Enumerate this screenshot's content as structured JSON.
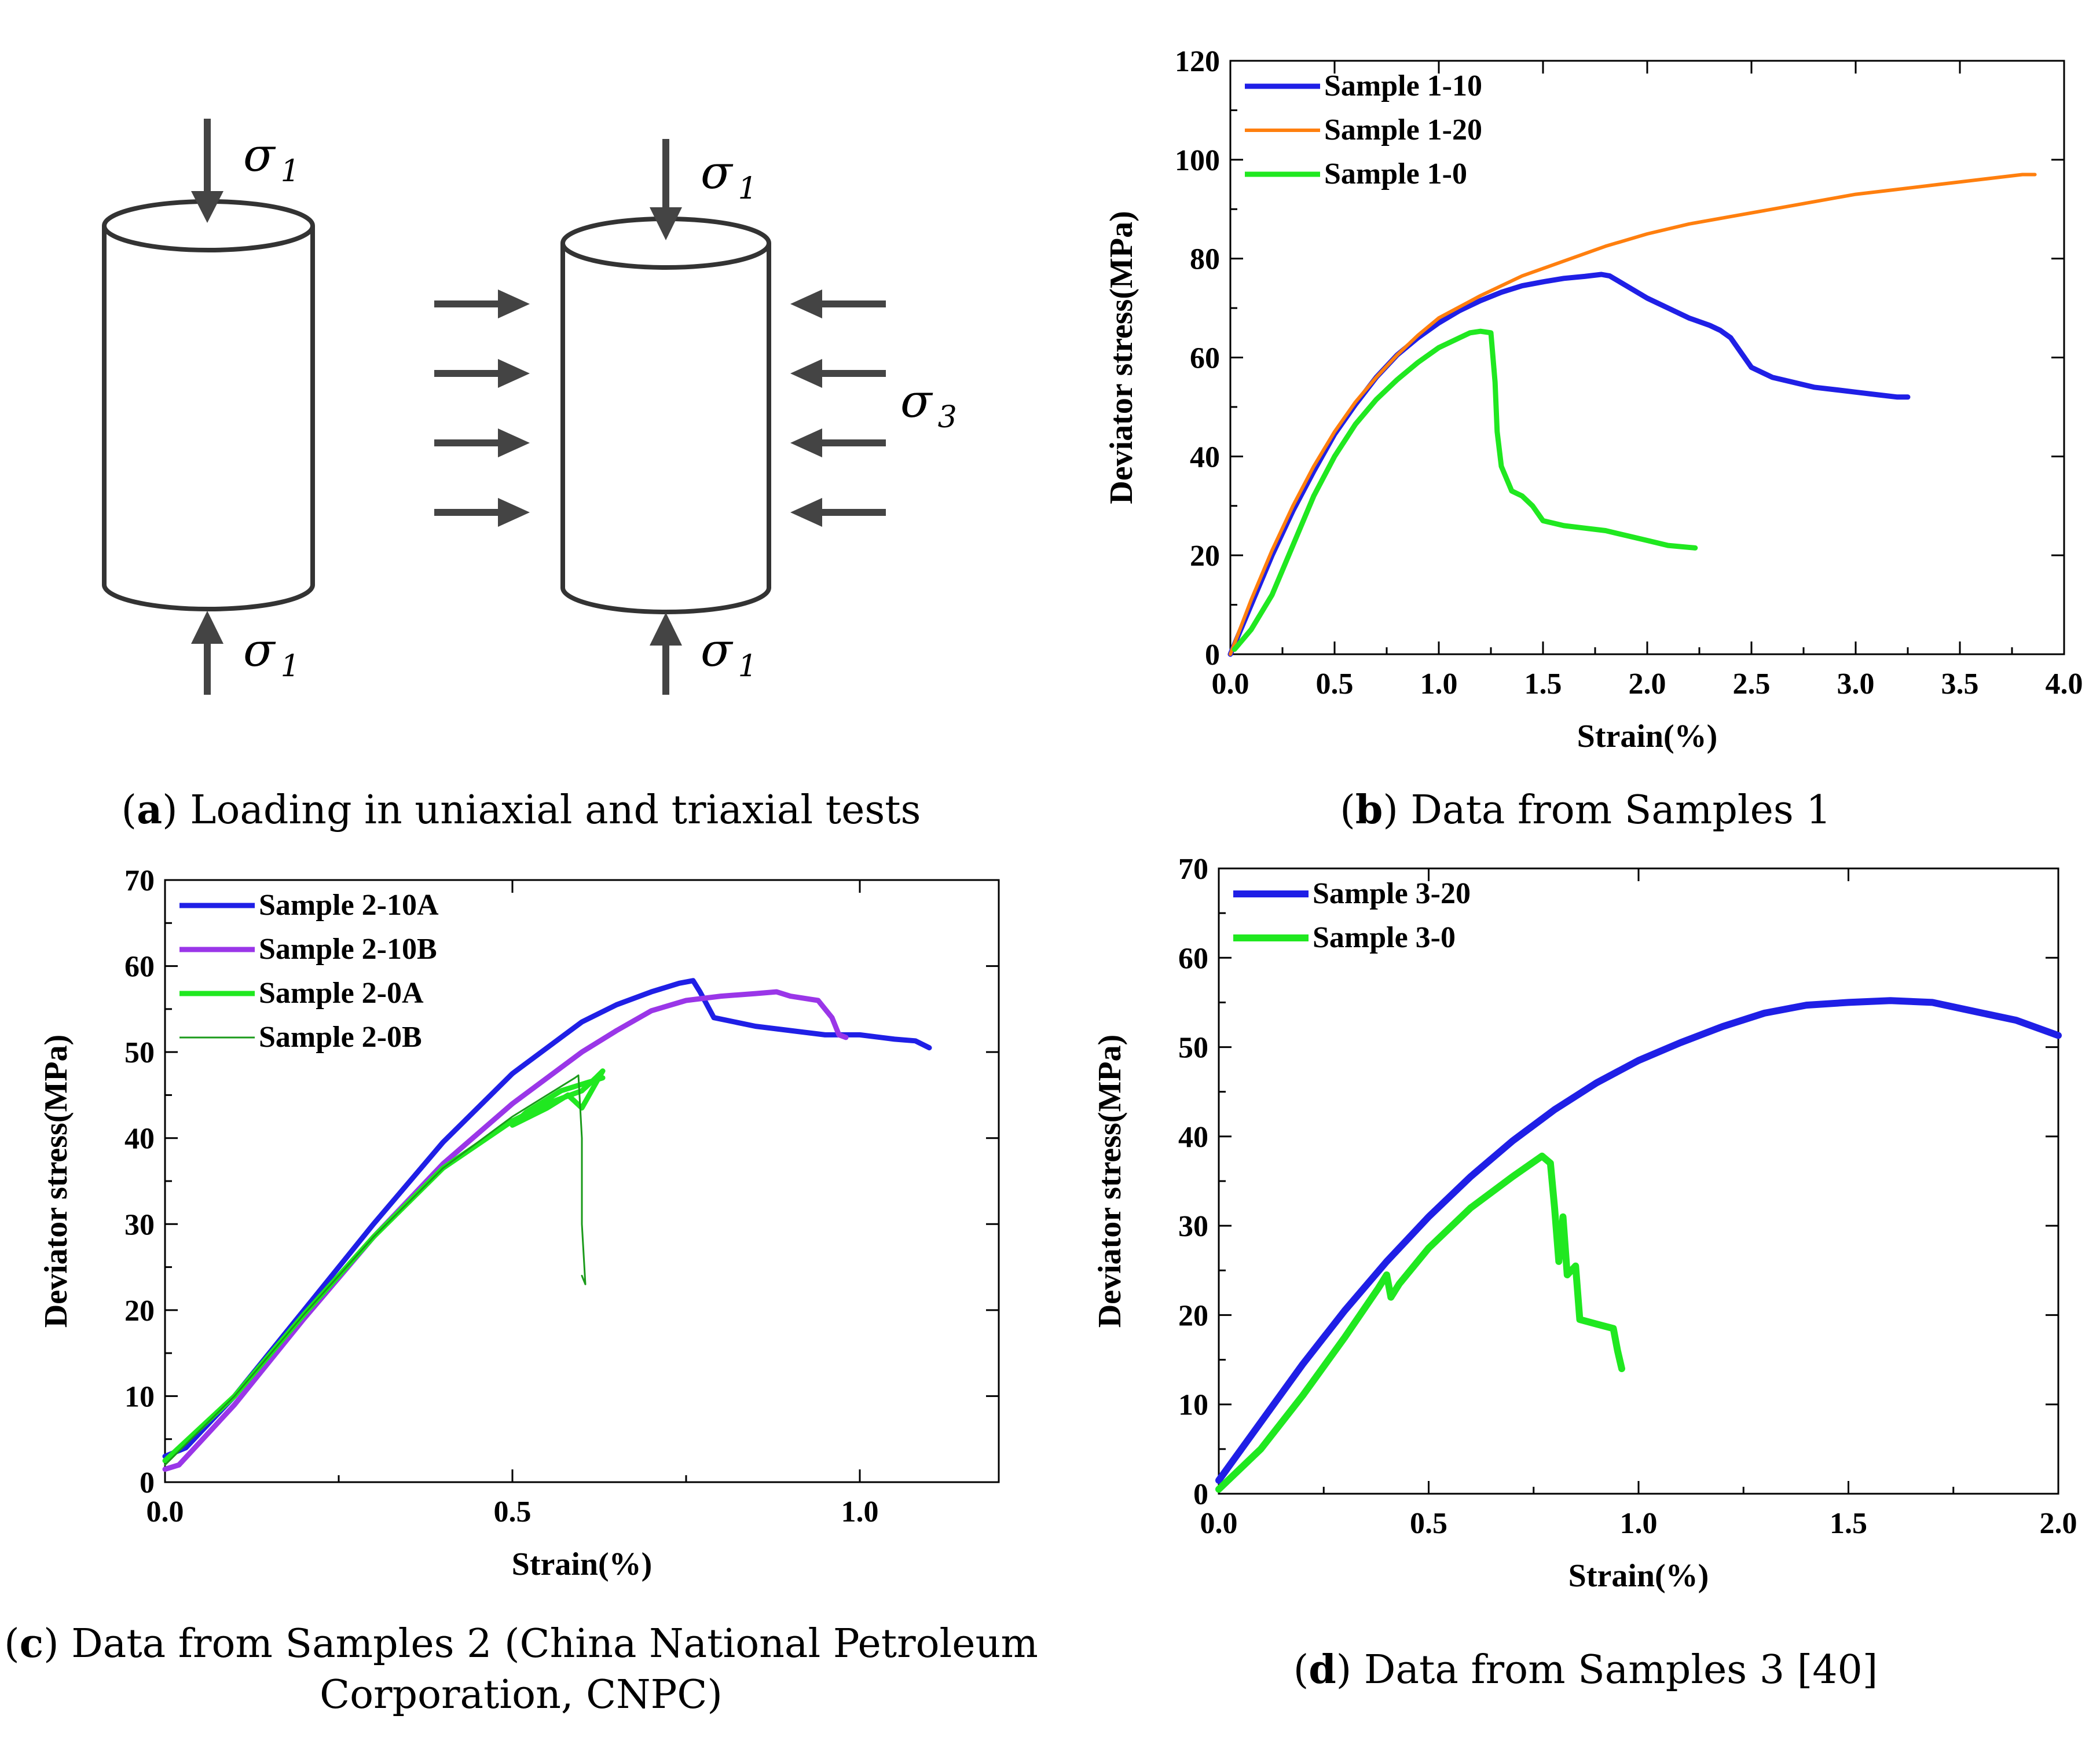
{
  "diagram": {
    "sigma": "σ",
    "sub1": "1",
    "sub3": "3",
    "caption_letter": "a",
    "caption_text": " Loading in uniaxial and triaxial tests"
  },
  "chart_data": [
    {
      "id": "b",
      "type": "line",
      "caption_letter": "b",
      "caption_text": " Data from Samples 1",
      "xlabel": "Strain(%)",
      "ylabel": "Deviator stress(MPa)",
      "xlim": [
        0,
        4
      ],
      "ylim": [
        0,
        120
      ],
      "xticks": [
        "0.0",
        "0.5",
        "1.0",
        "1.5",
        "2.0",
        "2.5",
        "3.0",
        "3.5",
        "4.0"
      ],
      "xtick_values": [
        0,
        0.5,
        1,
        1.5,
        2,
        2.5,
        3,
        3.5,
        4
      ],
      "yticks": [
        "0",
        "20",
        "40",
        "60",
        "80",
        "100",
        "120"
      ],
      "ytick_values": [
        0,
        20,
        40,
        60,
        80,
        100,
        120
      ],
      "legend_position": "top-left",
      "series": [
        {
          "name": "Sample 1-10",
          "color": "#1f1fe6",
          "width": 9,
          "points": [
            [
              0,
              0
            ],
            [
              0.1,
              10
            ],
            [
              0.2,
              20
            ],
            [
              0.3,
              29
            ],
            [
              0.4,
              37
            ],
            [
              0.5,
              44.5
            ],
            [
              0.6,
              50.5
            ],
            [
              0.7,
              56
            ],
            [
              0.8,
              60.5
            ],
            [
              0.9,
              64
            ],
            [
              1.0,
              67
            ],
            [
              1.1,
              69.5
            ],
            [
              1.2,
              71.5
            ],
            [
              1.3,
              73.2
            ],
            [
              1.4,
              74.5
            ],
            [
              1.5,
              75.3
            ],
            [
              1.6,
              76
            ],
            [
              1.7,
              76.4
            ],
            [
              1.78,
              76.8
            ],
            [
              1.82,
              76.5
            ],
            [
              1.9,
              74.5
            ],
            [
              2.0,
              72
            ],
            [
              2.1,
              70
            ],
            [
              2.2,
              68
            ],
            [
              2.3,
              66.5
            ],
            [
              2.35,
              65.5
            ],
            [
              2.4,
              64
            ],
            [
              2.45,
              61
            ],
            [
              2.5,
              58
            ],
            [
              2.6,
              56
            ],
            [
              2.7,
              55
            ],
            [
              2.8,
              54
            ],
            [
              2.9,
              53.5
            ],
            [
              3.0,
              53
            ],
            [
              3.1,
              52.5
            ],
            [
              3.2,
              52
            ],
            [
              3.25,
              52
            ]
          ]
        },
        {
          "name": "Sample 1-20",
          "color": "#ff7f0e",
          "width": 6,
          "points": [
            [
              0,
              0
            ],
            [
              0.1,
              11
            ],
            [
              0.2,
              21
            ],
            [
              0.3,
              30
            ],
            [
              0.4,
              38
            ],
            [
              0.5,
              45
            ],
            [
              0.6,
              51
            ],
            [
              0.7,
              56
            ],
            [
              0.8,
              60.5
            ],
            [
              0.9,
              64.5
            ],
            [
              1.0,
              68
            ],
            [
              1.2,
              72.5
            ],
            [
              1.4,
              76.5
            ],
            [
              1.6,
              79.5
            ],
            [
              1.8,
              82.5
            ],
            [
              2.0,
              85
            ],
            [
              2.2,
              87
            ],
            [
              2.4,
              88.5
            ],
            [
              2.6,
              90
            ],
            [
              2.8,
              91.5
            ],
            [
              3.0,
              93
            ],
            [
              3.2,
              94
            ],
            [
              3.4,
              95
            ],
            [
              3.6,
              96
            ],
            [
              3.8,
              97
            ],
            [
              3.86,
              97
            ]
          ]
        },
        {
          "name": "Sample 1-0",
          "color": "#20e820",
          "width": 9,
          "points": [
            [
              0.02,
              1
            ],
            [
              0.1,
              5
            ],
            [
              0.2,
              12
            ],
            [
              0.3,
              22
            ],
            [
              0.4,
              32
            ],
            [
              0.5,
              40
            ],
            [
              0.6,
              46.5
            ],
            [
              0.7,
              51.5
            ],
            [
              0.8,
              55.5
            ],
            [
              0.9,
              59
            ],
            [
              1.0,
              62
            ],
            [
              1.1,
              64
            ],
            [
              1.15,
              65
            ],
            [
              1.2,
              65.3
            ],
            [
              1.25,
              65
            ],
            [
              1.27,
              55
            ],
            [
              1.28,
              45
            ],
            [
              1.3,
              38
            ],
            [
              1.33,
              35
            ],
            [
              1.35,
              33
            ],
            [
              1.4,
              32
            ],
            [
              1.45,
              30
            ],
            [
              1.5,
              27
            ],
            [
              1.6,
              26
            ],
            [
              1.7,
              25.5
            ],
            [
              1.8,
              25
            ],
            [
              1.9,
              24
            ],
            [
              2.0,
              23
            ],
            [
              2.1,
              22
            ],
            [
              2.23,
              21.5
            ]
          ]
        }
      ]
    },
    {
      "id": "c",
      "type": "line",
      "caption_letter": "c",
      "caption_text": " Data from Samples 2 (China National Petroleum Corporation, CNPC)",
      "xlabel": "Strain(%)",
      "ylabel": "Deviator stress(MPa)",
      "xlim": [
        0,
        1.2
      ],
      "ylim": [
        0,
        70
      ],
      "xticks": [
        "0.0",
        "0.5",
        "1.0"
      ],
      "xtick_values": [
        0,
        0.5,
        1.0
      ],
      "yticks": [
        "0",
        "10",
        "20",
        "30",
        "40",
        "50",
        "60",
        "70"
      ],
      "ytick_values": [
        0,
        10,
        20,
        30,
        40,
        50,
        60,
        70
      ],
      "legend_position": "top-left",
      "series": [
        {
          "name": "Sample 2-10A",
          "color": "#1f1fe6",
          "width": 9,
          "points": [
            [
              0,
              3
            ],
            [
              0.03,
              4
            ],
            [
              0.1,
              10
            ],
            [
              0.2,
              20
            ],
            [
              0.3,
              30
            ],
            [
              0.4,
              39.5
            ],
            [
              0.5,
              47.5
            ],
            [
              0.55,
              50.5
            ],
            [
              0.6,
              53.5
            ],
            [
              0.65,
              55.5
            ],
            [
              0.7,
              57
            ],
            [
              0.74,
              58
            ],
            [
              0.76,
              58.3
            ],
            [
              0.77,
              57
            ],
            [
              0.79,
              54
            ],
            [
              0.85,
              53
            ],
            [
              0.9,
              52.5
            ],
            [
              0.95,
              52
            ],
            [
              1.0,
              52
            ],
            [
              1.05,
              51.5
            ],
            [
              1.08,
              51.3
            ],
            [
              1.1,
              50.5
            ]
          ]
        },
        {
          "name": "Sample 2-10B",
          "color": "#9a36e8",
          "width": 9,
          "points": [
            [
              0,
              1.5
            ],
            [
              0.02,
              2
            ],
            [
              0.1,
              9
            ],
            [
              0.2,
              19
            ],
            [
              0.3,
              28.5
            ],
            [
              0.4,
              37
            ],
            [
              0.5,
              44
            ],
            [
              0.6,
              50
            ],
            [
              0.65,
              52.5
            ],
            [
              0.7,
              54.8
            ],
            [
              0.75,
              56
            ],
            [
              0.8,
              56.5
            ],
            [
              0.85,
              56.8
            ],
            [
              0.88,
              57
            ],
            [
              0.9,
              56.5
            ],
            [
              0.94,
              56
            ],
            [
              0.96,
              54
            ],
            [
              0.97,
              52
            ],
            [
              0.98,
              51.7
            ]
          ]
        },
        {
          "name": "Sample 2-0A",
          "color": "#20e820",
          "width": 9,
          "points": [
            [
              0,
              2.5
            ],
            [
              0.1,
              10
            ],
            [
              0.2,
              19.5
            ],
            [
              0.3,
              28.5
            ],
            [
              0.4,
              36.5
            ],
            [
              0.5,
              42
            ],
            [
              0.55,
              44
            ],
            [
              0.6,
              45.5
            ],
            [
              0.62,
              47
            ],
            [
              0.63,
              47.8
            ],
            [
              0.6,
              43.5
            ],
            [
              0.58,
              45
            ],
            [
              0.55,
              43.5
            ],
            [
              0.5,
              41.5
            ],
            [
              0.52,
              43
            ],
            [
              0.57,
              45.5
            ],
            [
              0.61,
              46.5
            ],
            [
              0.63,
              47
            ]
          ]
        },
        {
          "name": "Sample 2-0B",
          "color": "#1a9a1a",
          "width": 3,
          "points": [
            [
              0,
              2
            ],
            [
              0.1,
              10
            ],
            [
              0.2,
              19.5
            ],
            [
              0.3,
              28.5
            ],
            [
              0.4,
              36.5
            ],
            [
              0.5,
              42.5
            ],
            [
              0.55,
              45
            ],
            [
              0.59,
              47
            ],
            [
              0.595,
              47.3
            ],
            [
              0.6,
              40
            ],
            [
              0.6,
              30
            ],
            [
              0.605,
              23
            ],
            [
              0.6,
              24
            ]
          ]
        }
      ]
    },
    {
      "id": "d",
      "type": "line",
      "caption_letter": "d",
      "caption_text": " Data from Samples 3 [40]",
      "xlabel": "Strain(%)",
      "ylabel": "Deviator stress(MPa)",
      "xlim": [
        0,
        2
      ],
      "ylim": [
        0,
        70
      ],
      "xticks": [
        "0.0",
        "0.5",
        "1.0",
        "1.5",
        "2.0"
      ],
      "xtick_values": [
        0,
        0.5,
        1.0,
        1.5,
        2.0
      ],
      "yticks": [
        "0",
        "10",
        "20",
        "30",
        "40",
        "50",
        "60",
        "70"
      ],
      "ytick_values": [
        0,
        10,
        20,
        30,
        40,
        50,
        60,
        70
      ],
      "legend_position": "top-left",
      "series": [
        {
          "name": "Sample 3-20",
          "color": "#1f1fe6",
          "width": 12,
          "points": [
            [
              0,
              1.5
            ],
            [
              0.1,
              8
            ],
            [
              0.2,
              14.5
            ],
            [
              0.3,
              20.5
            ],
            [
              0.4,
              26
            ],
            [
              0.5,
              31
            ],
            [
              0.6,
              35.5
            ],
            [
              0.7,
              39.5
            ],
            [
              0.8,
              43
            ],
            [
              0.9,
              46
            ],
            [
              1.0,
              48.5
            ],
            [
              1.1,
              50.5
            ],
            [
              1.2,
              52.3
            ],
            [
              1.3,
              53.8
            ],
            [
              1.4,
              54.7
            ],
            [
              1.5,
              55
            ],
            [
              1.6,
              55.2
            ],
            [
              1.7,
              55
            ],
            [
              1.8,
              54
            ],
            [
              1.9,
              53
            ],
            [
              2.0,
              51.3
            ]
          ]
        },
        {
          "name": "Sample 3-0",
          "color": "#20e820",
          "width": 12,
          "points": [
            [
              0,
              0.5
            ],
            [
              0.1,
              5
            ],
            [
              0.2,
              11
            ],
            [
              0.3,
              17.5
            ],
            [
              0.38,
              23
            ],
            [
              0.4,
              24.5
            ],
            [
              0.41,
              22
            ],
            [
              0.43,
              23.5
            ],
            [
              0.5,
              27.5
            ],
            [
              0.6,
              32
            ],
            [
              0.7,
              35.5
            ],
            [
              0.77,
              37.8
            ],
            [
              0.79,
              37
            ],
            [
              0.8,
              32
            ],
            [
              0.81,
              26
            ],
            [
              0.82,
              31
            ],
            [
              0.83,
              24.5
            ],
            [
              0.85,
              25.5
            ],
            [
              0.86,
              19.5
            ],
            [
              0.9,
              19
            ],
            [
              0.94,
              18.5
            ],
            [
              0.95,
              16
            ],
            [
              0.96,
              14
            ]
          ]
        }
      ]
    }
  ]
}
